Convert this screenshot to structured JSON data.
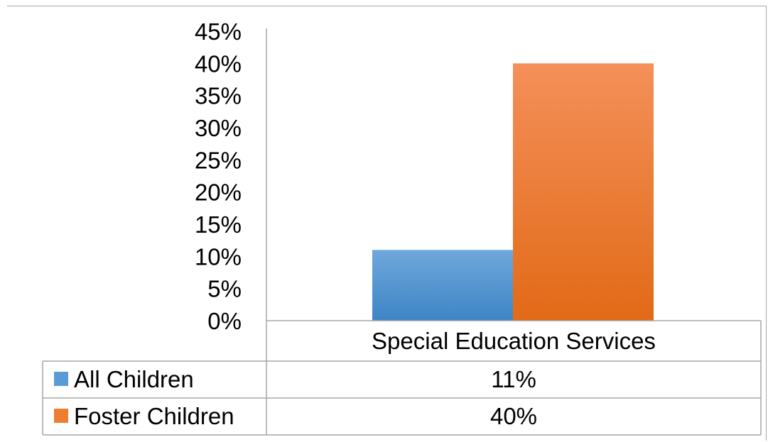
{
  "chart_data": {
    "type": "bar",
    "categories": [
      "Special Education Services"
    ],
    "series": [
      {
        "name": "All Children",
        "values": [
          11
        ],
        "value_label": "11%",
        "color": "#5b9bd5"
      },
      {
        "name": "Foster Children",
        "values": [
          40
        ],
        "value_label": "40%",
        "color": "#ed7d31"
      }
    ],
    "y_ticks": [
      "0%",
      "5%",
      "10%",
      "15%",
      "20%",
      "25%",
      "30%",
      "35%",
      "40%",
      "45%"
    ],
    "ylim": [
      0,
      45
    ],
    "grid": false,
    "legend": "data-table",
    "colors": {
      "all_top": "#6fa8dc",
      "all_bottom": "#3d85c6",
      "foster_top": "#f4905a",
      "foster_bottom": "#e26a17",
      "axis": "#a6a6a6"
    }
  }
}
